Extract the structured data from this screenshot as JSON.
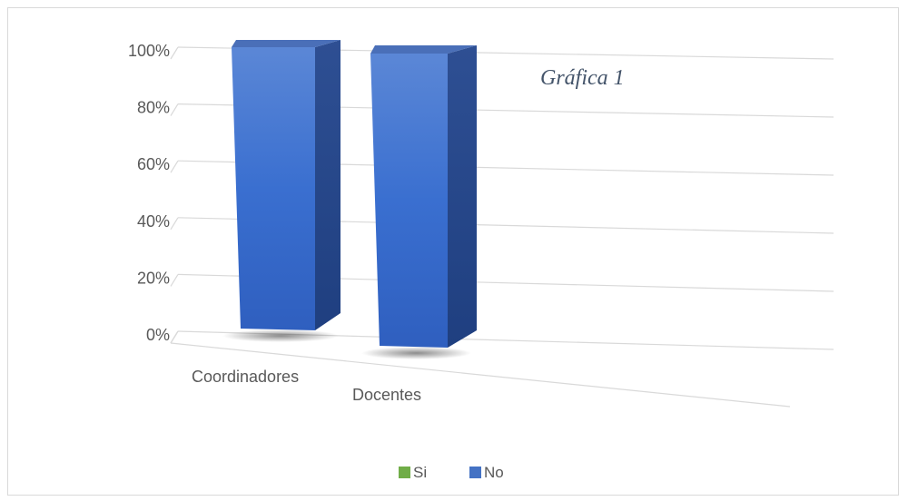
{
  "chart_data": {
    "type": "bar",
    "categories": [
      "Coordinadores",
      "Docentes"
    ],
    "series": [
      {
        "name": "Si",
        "values": [
          0,
          0
        ],
        "color": "#70ad47"
      },
      {
        "name": "No",
        "values": [
          100,
          100
        ],
        "color": "#4472c4"
      }
    ],
    "y_ticks": [
      "0%",
      "20%",
      "40%",
      "60%",
      "80%",
      "100%"
    ],
    "ylim": [
      0,
      100
    ],
    "annotation": "Gráfica 1",
    "grid": true,
    "legend_position": "bottom",
    "style": "3d-column"
  }
}
